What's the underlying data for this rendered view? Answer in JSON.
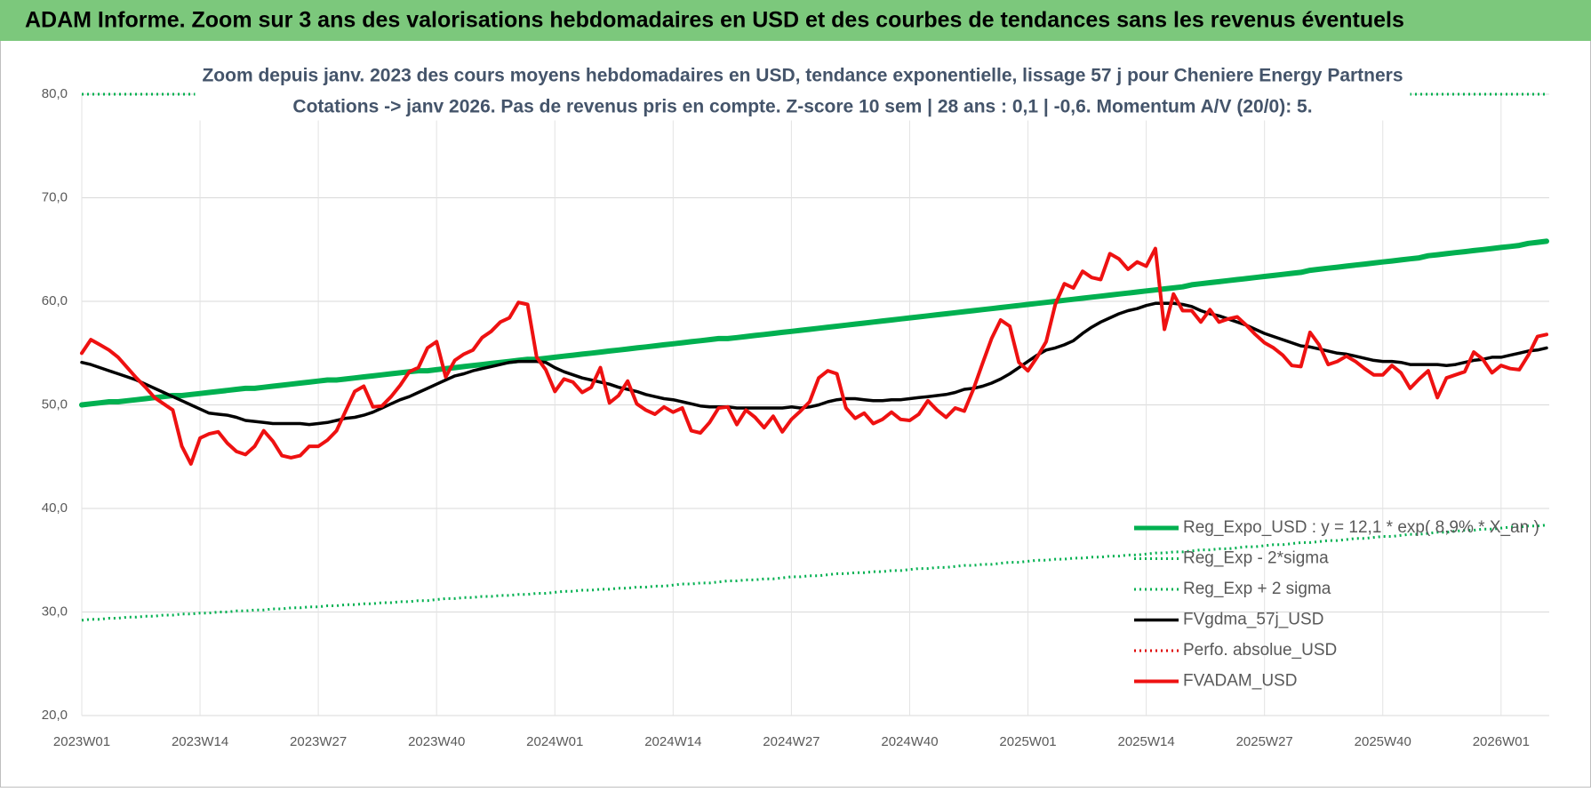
{
  "chart_data": {
    "type": "line",
    "header": "ADAM Informe. Zoom sur 3 ans des valorisations hebdomadaires en USD et des courbes de tendances sans les revenus éventuels",
    "title": [
      "Zoom depuis janv. 2023 des cours moyens hebdomadaires en USD, tendance exponentielle, lissage 57 j pour Cheniere Energy Partners",
      "Cotations -> janv 2026. Pas de revenus pris en compte. Z-score 10 sem | 28 ans : 0,1 | -0,6. Momentum A/V (20/0): 5."
    ],
    "categories": [
      "2023W01",
      null,
      null,
      null,
      null,
      null,
      null,
      null,
      null,
      null,
      null,
      null,
      null,
      "2023W14",
      null,
      null,
      null,
      null,
      null,
      null,
      null,
      null,
      null,
      null,
      null,
      null,
      "2023W27",
      null,
      null,
      null,
      null,
      null,
      null,
      null,
      null,
      null,
      null,
      null,
      null,
      "2023W40",
      null,
      null,
      null,
      null,
      null,
      null,
      null,
      null,
      null,
      null,
      null,
      null,
      "2024W01",
      null,
      null,
      null,
      null,
      null,
      null,
      null,
      null,
      null,
      null,
      null,
      null,
      "2024W14",
      null,
      null,
      null,
      null,
      null,
      null,
      null,
      null,
      null,
      null,
      null,
      null,
      "2024W27",
      null,
      null,
      null,
      null,
      null,
      null,
      null,
      null,
      null,
      null,
      null,
      null,
      "2024W40",
      null,
      null,
      null,
      null,
      null,
      null,
      null,
      null,
      null,
      null,
      null,
      null,
      "2025W01",
      null,
      null,
      null,
      null,
      null,
      null,
      null,
      null,
      null,
      null,
      null,
      null,
      "2025W14",
      null,
      null,
      null,
      null,
      null,
      null,
      null,
      null,
      null,
      null,
      null,
      null,
      "2025W27",
      null,
      null,
      null,
      null,
      null,
      null,
      null,
      null,
      null,
      null,
      null,
      null,
      "2025W40",
      null,
      null,
      null,
      null,
      null,
      null,
      null,
      null,
      null,
      null,
      null,
      null,
      "2026W01",
      null,
      null,
      null,
      null,
      null
    ],
    "ylim": [
      20,
      80
    ],
    "yticks": [
      {
        "value": 20,
        "label": "20,0"
      },
      {
        "value": 30,
        "label": "30,0"
      },
      {
        "value": 40,
        "label": "40,0"
      },
      {
        "value": 50,
        "label": "50,0"
      },
      {
        "value": 60,
        "label": "60,0"
      },
      {
        "value": 70,
        "label": "70,0"
      },
      {
        "value": 80,
        "label": "80,0"
      }
    ],
    "grid": true,
    "legend": "lower right",
    "series": [
      {
        "name": "Reg_Expo_USD : y = 12,1 * exp( 8,9% * X_an )",
        "color": "#00b050",
        "style": "thick",
        "values": [
          50.0,
          50.1,
          50.2,
          50.3,
          50.3,
          50.4,
          50.5,
          50.6,
          50.7,
          50.8,
          50.9,
          50.9,
          51.0,
          51.1,
          51.2,
          51.3,
          51.4,
          51.5,
          51.6,
          51.6,
          51.7,
          51.8,
          51.9,
          52.0,
          52.1,
          52.2,
          52.3,
          52.4,
          52.4,
          52.5,
          52.6,
          52.7,
          52.8,
          52.9,
          53.0,
          53.1,
          53.2,
          53.3,
          53.3,
          53.4,
          53.5,
          53.6,
          53.7,
          53.8,
          53.9,
          54.0,
          54.1,
          54.2,
          54.3,
          54.4,
          54.4,
          54.5,
          54.6,
          54.7,
          54.8,
          54.9,
          55.0,
          55.1,
          55.2,
          55.3,
          55.4,
          55.5,
          55.6,
          55.7,
          55.8,
          55.9,
          56.0,
          56.1,
          56.2,
          56.3,
          56.4,
          56.4,
          56.5,
          56.6,
          56.7,
          56.8,
          56.9,
          57.0,
          57.1,
          57.2,
          57.3,
          57.4,
          57.5,
          57.6,
          57.7,
          57.8,
          57.9,
          58.0,
          58.1,
          58.2,
          58.3,
          58.4,
          58.5,
          58.6,
          58.7,
          58.8,
          58.9,
          59.0,
          59.1,
          59.2,
          59.3,
          59.4,
          59.5,
          59.6,
          59.7,
          59.8,
          59.9,
          60.0,
          60.1,
          60.2,
          60.3,
          60.4,
          60.5,
          60.6,
          60.7,
          60.8,
          60.9,
          61.0,
          61.1,
          61.2,
          61.3,
          61.4,
          61.6,
          61.7,
          61.8,
          61.9,
          62.0,
          62.1,
          62.2,
          62.3,
          62.4,
          62.5,
          62.6,
          62.7,
          62.8,
          63.0,
          63.1,
          63.2,
          63.3,
          63.4,
          63.5,
          63.6,
          63.7,
          63.8,
          63.9,
          64.0,
          64.1,
          64.2,
          64.4,
          64.5,
          64.6,
          64.7,
          64.8,
          64.9,
          65.0,
          65.1,
          65.2,
          65.3,
          65.4,
          65.6,
          65.7,
          65.8
        ]
      },
      {
        "name": "Reg_Exp - 2*sigma",
        "color": "#00b050",
        "style": "dotted",
        "values": [
          29.2,
          29.3,
          29.3,
          29.4,
          29.4,
          29.5,
          29.5,
          29.6,
          29.6,
          29.7,
          29.7,
          29.8,
          29.8,
          29.9,
          29.9,
          30.0,
          30.0,
          30.1,
          30.1,
          30.2,
          30.2,
          30.3,
          30.3,
          30.4,
          30.4,
          30.5,
          30.5,
          30.6,
          30.6,
          30.7,
          30.7,
          30.8,
          30.8,
          30.9,
          30.9,
          31.0,
          31.0,
          31.1,
          31.1,
          31.2,
          31.3,
          31.3,
          31.4,
          31.4,
          31.5,
          31.5,
          31.6,
          31.6,
          31.7,
          31.7,
          31.8,
          31.8,
          31.9,
          32.0,
          32.0,
          32.1,
          32.1,
          32.2,
          32.2,
          32.3,
          32.3,
          32.4,
          32.4,
          32.5,
          32.5,
          32.6,
          32.7,
          32.7,
          32.8,
          32.8,
          32.9,
          33.0,
          33.0,
          33.1,
          33.1,
          33.2,
          33.2,
          33.3,
          33.4,
          33.4,
          33.5,
          33.5,
          33.6,
          33.7,
          33.7,
          33.8,
          33.8,
          33.9,
          33.9,
          34.0,
          34.0,
          34.1,
          34.2,
          34.2,
          34.3,
          34.3,
          34.4,
          34.5,
          34.5,
          34.6,
          34.6,
          34.7,
          34.8,
          34.8,
          34.9,
          35.0,
          35.0,
          35.1,
          35.1,
          35.2,
          35.2,
          35.3,
          35.3,
          35.4,
          35.4,
          35.5,
          35.5,
          35.6,
          35.7,
          35.7,
          35.8,
          35.8,
          35.9,
          36.0,
          36.0,
          36.1,
          36.1,
          36.2,
          36.3,
          36.3,
          36.4,
          36.5,
          36.5,
          36.6,
          36.7,
          36.7,
          36.8,
          36.9,
          36.9,
          37.0,
          37.1,
          37.1,
          37.2,
          37.3,
          37.3,
          37.4,
          37.5,
          37.5,
          37.6,
          37.7,
          37.7,
          37.8,
          37.9,
          37.9,
          38.0,
          38.0,
          38.1,
          38.2,
          38.2,
          38.3,
          38.3,
          38.4
        ]
      },
      {
        "name": "Reg_Exp + 2 sigma",
        "color": "#00b050",
        "style": "dotted",
        "values": [
          80,
          80,
          80,
          80,
          80,
          80,
          80,
          80,
          80,
          80,
          80,
          80,
          80,
          80,
          80,
          80,
          80,
          80,
          80,
          80,
          80,
          80,
          80,
          80,
          80,
          80,
          80,
          80,
          80,
          80,
          80,
          80,
          80,
          80,
          80,
          80,
          80,
          80,
          80,
          80,
          80,
          80,
          80,
          80,
          80,
          80,
          80,
          80,
          80,
          80,
          80,
          80,
          80,
          80,
          80,
          80,
          80,
          80,
          80,
          80,
          80,
          80,
          80,
          80,
          80,
          80,
          80,
          80,
          80,
          80,
          80,
          80,
          80,
          80,
          80,
          80,
          80,
          80,
          80,
          80,
          80,
          80,
          80,
          80,
          80,
          80,
          80,
          80,
          80,
          80,
          80,
          80,
          80,
          80,
          80,
          80,
          80,
          80,
          80,
          80,
          80,
          80,
          80,
          80,
          80,
          80,
          80,
          80,
          80,
          80,
          80,
          80,
          80,
          80,
          80,
          80,
          80,
          80,
          80,
          80,
          80,
          80,
          80,
          80,
          80,
          80,
          80,
          80,
          80,
          80,
          80,
          80,
          80,
          80,
          80,
          80,
          80,
          80,
          80,
          80,
          80,
          80,
          80,
          80,
          80,
          80,
          80,
          80,
          80,
          80,
          80,
          80,
          80,
          80,
          80,
          80,
          80,
          80,
          80,
          80,
          80,
          80
        ]
      },
      {
        "name": "FVgdma_57j_USD",
        "color": "#000000",
        "style": "solid",
        "values": [
          54.1,
          53.9,
          53.6,
          53.3,
          53.0,
          52.7,
          52.4,
          52.0,
          51.6,
          51.2,
          50.8,
          50.4,
          50.0,
          49.6,
          49.2,
          49.1,
          49.0,
          48.8,
          48.5,
          48.4,
          48.3,
          48.2,
          48.2,
          48.2,
          48.2,
          48.1,
          48.2,
          48.3,
          48.5,
          48.7,
          48.8,
          49.0,
          49.3,
          49.7,
          50.1,
          50.5,
          50.8,
          51.2,
          51.6,
          52.0,
          52.4,
          52.8,
          53.0,
          53.3,
          53.5,
          53.7,
          53.9,
          54.1,
          54.2,
          54.2,
          54.2,
          54.1,
          53.6,
          53.2,
          52.9,
          52.6,
          52.4,
          52.2,
          52.0,
          51.7,
          51.5,
          51.3,
          51.0,
          50.8,
          50.6,
          50.5,
          50.3,
          50.1,
          49.9,
          49.8,
          49.8,
          49.8,
          49.7,
          49.7,
          49.7,
          49.7,
          49.7,
          49.7,
          49.8,
          49.7,
          49.8,
          50.0,
          50.3,
          50.5,
          50.6,
          50.6,
          50.5,
          50.4,
          50.4,
          50.5,
          50.5,
          50.6,
          50.7,
          50.8,
          50.9,
          51.0,
          51.2,
          51.5,
          51.6,
          51.8,
          52.1,
          52.5,
          53.0,
          53.6,
          54.2,
          54.8,
          55.3,
          55.5,
          55.8,
          56.2,
          56.9,
          57.5,
          58.0,
          58.4,
          58.8,
          59.1,
          59.3,
          59.6,
          59.8,
          59.8,
          59.8,
          59.7,
          59.5,
          59.1,
          58.8,
          58.6,
          58.3,
          58.0,
          57.7,
          57.3,
          56.9,
          56.6,
          56.3,
          56.0,
          55.7,
          55.6,
          55.4,
          55.2,
          55.0,
          54.9,
          54.7,
          54.5,
          54.3,
          54.2,
          54.2,
          54.1,
          53.9,
          53.9,
          53.9,
          53.9,
          53.8,
          53.9,
          54.1,
          54.3,
          54.4,
          54.6,
          54.6,
          54.8,
          55.0,
          55.2,
          55.3,
          55.5
        ]
      },
      {
        "name": "Perfo. absolue_USD",
        "color": "#e00000",
        "style": "dotted",
        "values": [
          null,
          null,
          null,
          null,
          null,
          null,
          null,
          null,
          null,
          null,
          null,
          null,
          null,
          null,
          null,
          null,
          null,
          null,
          null,
          null,
          null,
          null,
          null,
          null,
          null,
          null,
          null,
          null,
          null,
          null,
          null,
          null,
          null,
          null,
          null,
          null,
          null,
          null,
          null,
          null,
          null,
          null,
          null,
          null,
          null,
          null,
          null,
          null,
          null,
          null,
          null,
          null,
          null,
          null,
          null,
          null,
          null,
          null,
          null,
          null,
          null,
          null,
          null,
          null,
          null,
          null,
          null,
          null,
          null,
          null,
          null,
          null,
          null,
          null,
          null,
          null,
          null,
          null,
          null,
          null,
          null,
          null,
          null,
          null,
          null,
          null,
          null,
          null,
          null,
          null,
          null,
          null,
          null,
          null,
          null,
          null,
          null,
          null,
          null,
          null,
          null,
          null,
          null,
          null,
          null,
          null,
          null,
          null,
          null,
          null,
          null,
          null,
          null,
          null,
          null,
          null,
          null,
          null,
          null,
          null,
          null,
          null,
          null,
          null,
          null,
          null,
          null,
          null,
          null,
          null,
          null,
          null,
          null,
          null,
          null,
          null,
          null,
          null,
          null,
          null,
          null,
          null,
          null,
          null,
          null,
          null,
          null,
          null,
          null,
          null,
          null,
          null,
          null,
          null,
          null,
          null,
          null,
          null,
          null,
          null,
          null,
          null
        ]
      },
      {
        "name": "FVADAM_USD",
        "color": "#ee1111",
        "style": "thick-red",
        "values": [
          55.0,
          56.3,
          55.8,
          55.3,
          54.6,
          53.6,
          52.6,
          51.7,
          50.7,
          50.1,
          49.5,
          46.0,
          44.3,
          46.8,
          47.2,
          47.4,
          46.3,
          45.5,
          45.2,
          46.0,
          47.5,
          46.5,
          45.1,
          44.9,
          45.1,
          46.0,
          46.0,
          46.6,
          47.5,
          49.4,
          51.3,
          51.8,
          49.8,
          49.9,
          50.8,
          51.9,
          53.2,
          53.6,
          55.5,
          56.1,
          52.7,
          54.3,
          54.9,
          55.3,
          56.5,
          57.1,
          58.0,
          58.4,
          59.9,
          59.7,
          54.6,
          53.4,
          51.3,
          52.5,
          52.2,
          51.2,
          51.7,
          53.6,
          50.2,
          50.9,
          52.3,
          50.1,
          49.5,
          49.1,
          49.8,
          49.3,
          49.7,
          47.5,
          47.3,
          48.3,
          49.7,
          49.8,
          48.1,
          49.5,
          48.8,
          47.8,
          48.9,
          47.4,
          48.6,
          49.4,
          50.3,
          52.6,
          53.3,
          53.0,
          49.7,
          48.7,
          49.2,
          48.2,
          48.6,
          49.3,
          48.6,
          48.5,
          49.1,
          50.4,
          49.5,
          48.8,
          49.7,
          49.4,
          51.5,
          54.0,
          56.4,
          58.2,
          57.6,
          54.1,
          53.3,
          54.6,
          56.1,
          59.7,
          61.7,
          61.3,
          62.9,
          62.3,
          62.1,
          64.6,
          64.1,
          63.1,
          63.8,
          63.4,
          65.1,
          57.3,
          60.7,
          59.1,
          59.1,
          58.0,
          59.2,
          58.0,
          58.3,
          58.5,
          57.7,
          56.8,
          56.0,
          55.5,
          54.8,
          53.8,
          53.7,
          57.0,
          55.8,
          53.9,
          54.2,
          54.7,
          54.2,
          53.5,
          52.9,
          52.9,
          53.8,
          53.1,
          51.6,
          52.5,
          53.3,
          50.7,
          52.6,
          52.9,
          53.2,
          55.1,
          54.4,
          53.1,
          53.8,
          53.5,
          53.4,
          54.8,
          56.6,
          56.8
        ]
      }
    ]
  }
}
